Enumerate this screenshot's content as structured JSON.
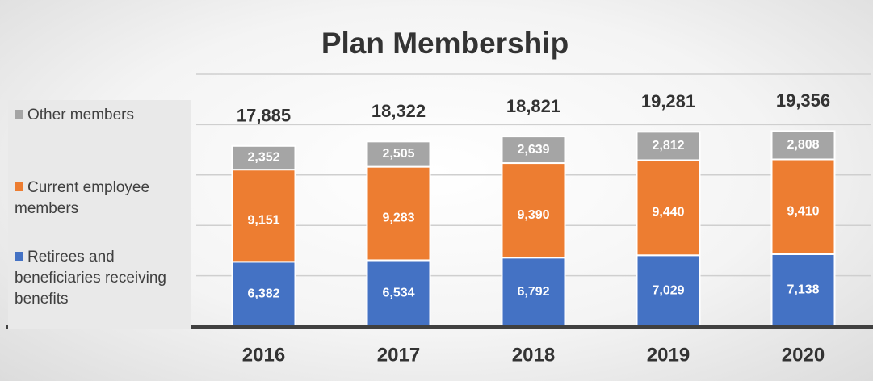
{
  "chart_data": {
    "type": "bar",
    "stacked": true,
    "title": "Plan Membership",
    "categories": [
      "2016",
      "2017",
      "2018",
      "2019",
      "2020"
    ],
    "series": [
      {
        "name": "Retirees and beneficiaries receiving benefits",
        "color": "#4472c4",
        "values": [
          6382,
          6534,
          6792,
          7029,
          7138
        ],
        "value_labels": [
          "6,382",
          "6,534",
          "6,792",
          "7,029",
          "7,138"
        ]
      },
      {
        "name": "Current employee members",
        "color": "#ed7d31",
        "values": [
          9151,
          9283,
          9390,
          9440,
          9410
        ],
        "value_labels": [
          "9,151",
          "9,283",
          "9,390",
          "9,440",
          "9,410"
        ]
      },
      {
        "name": "Other members",
        "color": "#a5a5a5",
        "values": [
          2352,
          2505,
          2639,
          2812,
          2808
        ],
        "value_labels": [
          "2,352",
          "2,505",
          "2,639",
          "2,812",
          "2,808"
        ]
      }
    ],
    "totals": [
      17885,
      18322,
      18821,
      19281,
      19356
    ],
    "total_labels": [
      "17,885",
      "18,322",
      "18,821",
      "19,281",
      "19,356"
    ],
    "ylim": [
      0,
      25000
    ],
    "yticks": [
      0,
      5000,
      10000,
      15000,
      20000,
      25000
    ],
    "grid": true,
    "legend": "left"
  }
}
